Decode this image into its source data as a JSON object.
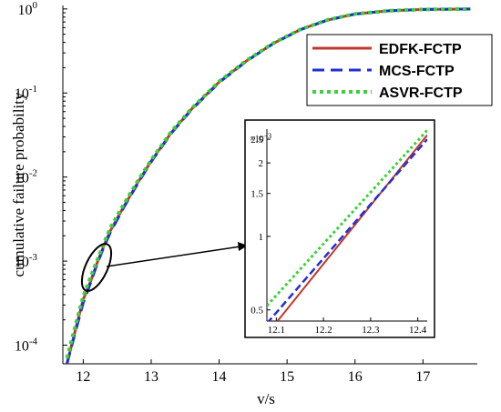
{
  "chart_data": [
    {
      "panel": "main",
      "type": "line",
      "title": "",
      "xlabel": "v/s",
      "ylabel": "cumulative failure probability",
      "xlim": [
        11.7,
        17.8
      ],
      "ylim": [
        6e-05,
        1.1
      ],
      "yscale": "log",
      "x_ticks": [
        "12",
        "13",
        "14",
        "15",
        "16",
        "17"
      ],
      "y_ticks": [
        {
          "base": "10",
          "exp": "0",
          "value": 1
        },
        {
          "base": "10",
          "exp": "-1",
          "value": 0.1
        },
        {
          "base": "10",
          "exp": "-2",
          "value": 0.01
        },
        {
          "base": "10",
          "exp": "-3",
          "value": 0.001
        },
        {
          "base": "10",
          "exp": "-4",
          "value": 0.0001
        }
      ],
      "grid": false,
      "legend_position": "top-right",
      "series": [
        {
          "name": "EDFK-FCTP",
          "color": "#c0392b",
          "dash": "solid",
          "x": [
            11.76,
            11.9,
            12.0,
            12.1,
            12.2,
            12.3,
            12.4,
            12.6,
            12.8,
            13.0,
            13.3,
            13.6,
            14.0,
            14.4,
            14.8,
            15.2,
            15.6,
            16.0,
            16.5,
            17.0,
            17.7
          ],
          "y": [
            6e-05,
            0.00017,
            0.00035,
            0.00055,
            0.00093,
            0.0015,
            0.0023,
            0.0045,
            0.0085,
            0.0155,
            0.034,
            0.065,
            0.135,
            0.24,
            0.39,
            0.57,
            0.74,
            0.87,
            0.95,
            0.985,
            0.998
          ]
        },
        {
          "name": "MCS-FCTP",
          "color": "#1f2fd6",
          "dash": "dashed",
          "x": [
            11.76,
            11.9,
            12.0,
            12.1,
            12.2,
            12.3,
            12.4,
            12.6,
            12.8,
            13.0,
            13.3,
            13.6,
            14.0,
            14.4,
            14.8,
            15.2,
            15.6,
            16.0,
            16.5,
            17.0,
            17.7
          ],
          "y": [
            6e-05,
            0.00016,
            0.00032,
            0.00053,
            0.0009,
            0.00145,
            0.0022,
            0.0044,
            0.0083,
            0.0152,
            0.0335,
            0.064,
            0.133,
            0.238,
            0.388,
            0.568,
            0.738,
            0.868,
            0.95,
            0.985,
            0.998
          ]
        },
        {
          "name": "ASVR-FCTP",
          "color": "#3cd13c",
          "dash": "dotted",
          "x": [
            11.76,
            11.9,
            12.0,
            12.1,
            12.2,
            12.3,
            12.4,
            12.6,
            12.8,
            13.0,
            13.3,
            13.6,
            14.0,
            14.4,
            14.8,
            15.2,
            15.6,
            16.0,
            16.5,
            17.0,
            17.7
          ],
          "y": [
            7e-05,
            0.00019,
            0.00038,
            0.00062,
            0.001,
            0.0016,
            0.0025,
            0.0048,
            0.0089,
            0.016,
            0.035,
            0.066,
            0.137,
            0.243,
            0.393,
            0.572,
            0.742,
            0.872,
            0.952,
            0.986,
            0.998
          ]
        }
      ]
    },
    {
      "panel": "inset",
      "type": "line",
      "xlim": [
        12.08,
        12.42
      ],
      "ylim": [
        0.45,
        2.75
      ],
      "x_ticks": [
        "12.1",
        "12.2",
        "12.3",
        "12.4"
      ],
      "y_ticks": [
        {
          "label": "0.5",
          "value": 0.5
        },
        {
          "label": "1",
          "value": 1
        },
        {
          "label": "1.5",
          "value": 1.5
        },
        {
          "label": "2",
          "value": 2
        },
        {
          "label": "2.5",
          "value": 2.5
        }
      ],
      "y_multiplier": {
        "base": "×10",
        "exp": "−3"
      },
      "series": [
        {
          "name": "EDFK-FCTP",
          "color": "#c0392b",
          "dash": "solid",
          "x": [
            12.09,
            12.42
          ],
          "y": [
            0.42,
            2.6
          ]
        },
        {
          "name": "MCS-FCTP",
          "color": "#1f2fd6",
          "dash": "dashed",
          "x": [
            12.08,
            12.42
          ],
          "y": [
            0.44,
            2.5
          ]
        },
        {
          "name": "ASVR-FCTP",
          "color": "#3cd13c",
          "dash": "dotted",
          "x": [
            12.08,
            12.42
          ],
          "y": [
            0.52,
            2.72
          ]
        }
      ]
    }
  ]
}
